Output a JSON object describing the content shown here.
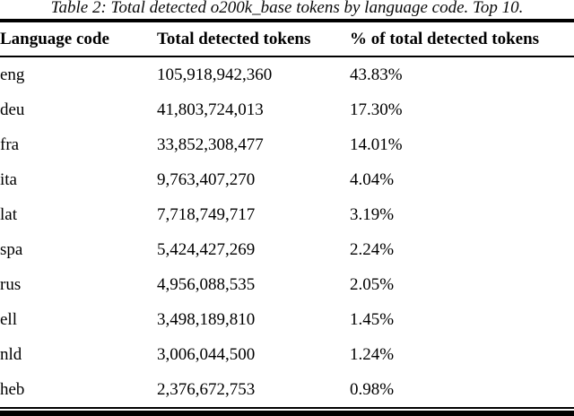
{
  "table": {
    "caption": "Table 2: Total detected o200k_base tokens by language code. Top 10.",
    "columns": [
      "Language code",
      "Total detected tokens",
      "% of total detected tokens"
    ],
    "rows": [
      {
        "code": "eng",
        "tokens": "105,918,942,360",
        "pct": "43.83%"
      },
      {
        "code": "deu",
        "tokens": "41,803,724,013",
        "pct": "17.30%"
      },
      {
        "code": "fra",
        "tokens": "33,852,308,477",
        "pct": "14.01%"
      },
      {
        "code": "ita",
        "tokens": "9,763,407,270",
        "pct": "4.04%"
      },
      {
        "code": "lat",
        "tokens": "7,718,749,717",
        "pct": "3.19%"
      },
      {
        "code": "spa",
        "tokens": "5,424,427,269",
        "pct": "2.24%"
      },
      {
        "code": "rus",
        "tokens": "4,956,088,535",
        "pct": "2.05%"
      },
      {
        "code": "ell",
        "tokens": "3,498,189,810",
        "pct": "1.45%"
      },
      {
        "code": "nld",
        "tokens": "3,006,044,500",
        "pct": "1.24%"
      },
      {
        "code": "heb",
        "tokens": "2,376,672,753",
        "pct": "0.98%"
      }
    ]
  },
  "colors": {
    "text": "#000000",
    "background": "#ffffff",
    "rule": "#000000"
  }
}
